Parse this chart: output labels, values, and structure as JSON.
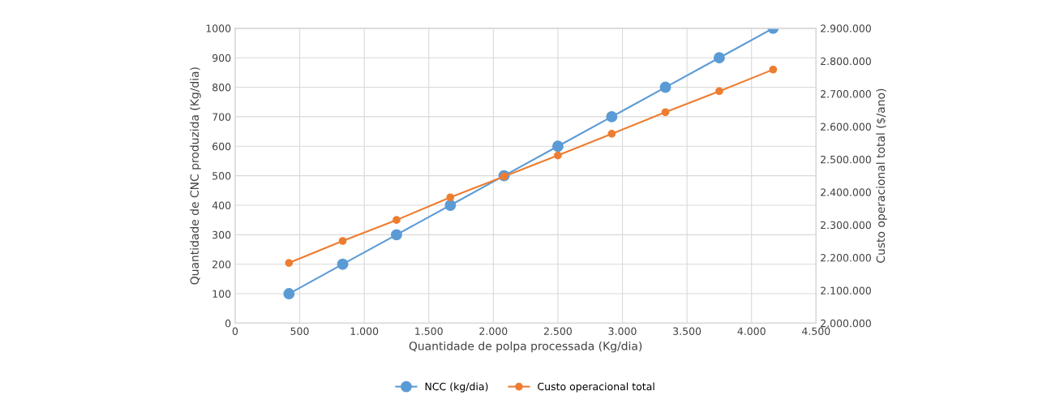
{
  "chart_data": {
    "type": "line",
    "xlabel": "Quantidade de polpa processada (Kg/dia)",
    "ylabel": "Quantidade de CNC produzida (Kg/dia)",
    "y2label": "Custo operacional total ($/ano)",
    "x": [
      417,
      833,
      1250,
      1667,
      2083,
      2500,
      2917,
      3333,
      3750,
      4167
    ],
    "series": [
      {
        "name": "NCC (kg/dia)",
        "color": "#5b9bd5",
        "values": [
          100,
          200,
          300,
          400,
          500,
          600,
          700,
          800,
          900,
          1000
        ]
      },
      {
        "name": "Custo operacional total",
        "color": "#ed7d31",
        "axis": "y2",
        "values": [
          2184000,
          2251000,
          2315000,
          2384000,
          2448000,
          2512000,
          2578000,
          2644000,
          2708000,
          2774000
        ]
      }
    ],
    "xlim": [
      0,
      4500
    ],
    "xticks": [
      0,
      {
        "value": 500,
        "label": "500"
      },
      {
        "value": 1000,
        "label": "1.000"
      },
      {
        "value": 1500,
        "label": "1.500"
      },
      {
        "value": 2000,
        "label": "2.000"
      },
      {
        "value": 2500,
        "label": "2.500"
      },
      {
        "value": 3000,
        "label": "3.000"
      },
      {
        "value": 3500,
        "label": "3.500"
      },
      {
        "value": 4000,
        "label": "4.000"
      },
      {
        "value": 4500,
        "label": "4.500"
      }
    ],
    "ylim": [
      0,
      1000
    ],
    "yticks": [
      0,
      100,
      200,
      300,
      400,
      500,
      600,
      700,
      800,
      900,
      1000
    ],
    "y2lim": [
      2000000,
      2900000
    ],
    "y2ticks": [
      {
        "value": 2000000,
        "label": "2.000.000"
      },
      {
        "value": 2100000,
        "label": "2.100.000"
      },
      {
        "value": 2200000,
        "label": "2.200.000"
      },
      {
        "value": 2300000,
        "label": "2.300.000"
      },
      {
        "value": 2400000,
        "label": "2.400.000"
      },
      {
        "value": 2500000,
        "label": "2.500.000"
      },
      {
        "value": 2600000,
        "label": "2.600.000"
      },
      {
        "value": 2700000,
        "label": "2.700.000"
      },
      {
        "value": 2800000,
        "label": "2.800.000"
      },
      {
        "value": 2900000,
        "label": "2.900.000"
      }
    ],
    "grid": true,
    "legend": "bottom",
    "marker": "circle",
    "line_style": "solid"
  }
}
